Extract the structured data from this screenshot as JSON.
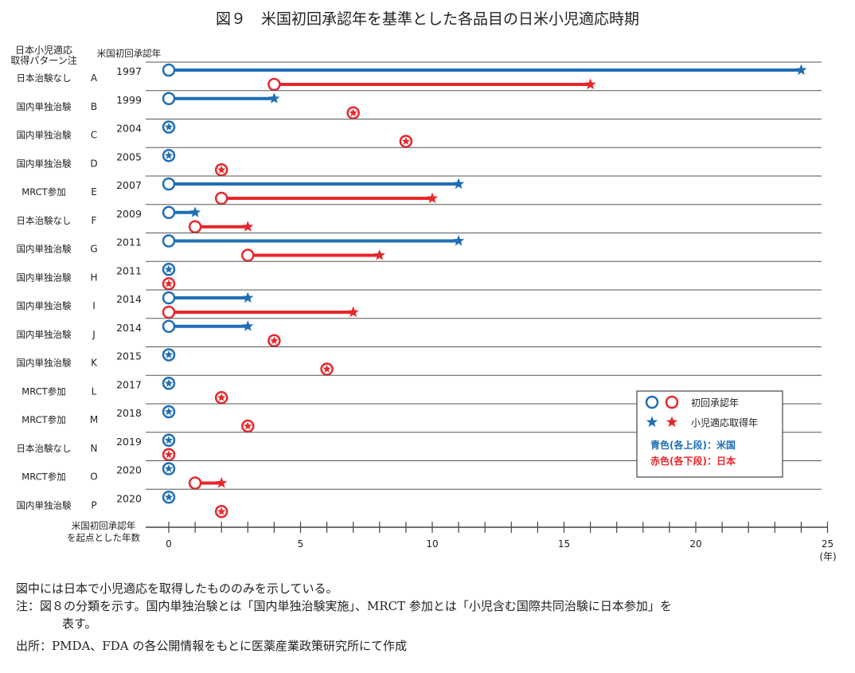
{
  "chart_data": {
    "type": "timeline",
    "title": "図９　米国初回承認年を基準とした各品目の日米小児適応時期",
    "col_header_pattern": [
      "日本小児適応",
      "取得パターン注"
    ],
    "col_header_year": "米国初回承認年",
    "xlabel": [
      "米国初回承認年",
      "を起点とした年数"
    ],
    "x_unit": "(年)",
    "xlim": [
      0,
      25
    ],
    "x_ticks": [
      0,
      5,
      10,
      15,
      20,
      25
    ],
    "legend": {
      "first_approval": "初回承認年",
      "pediatric": "小児適応取得年",
      "blue_note": "青色(各上段)：米国",
      "red_note": "赤色(各下段)：日本"
    },
    "colors": {
      "us": "#1f6eb5",
      "jp": "#e8262b"
    },
    "rows": [
      {
        "pattern": "日本治験なし",
        "id": "A",
        "us_year": "1997",
        "us": [
          0,
          24
        ],
        "jp": [
          4,
          16
        ]
      },
      {
        "pattern": "国内単独治験",
        "id": "B",
        "us_year": "1999",
        "us": [
          0,
          4
        ],
        "jp": [
          7,
          7
        ]
      },
      {
        "pattern": "国内単独治験",
        "id": "C",
        "us_year": "2004",
        "us": [
          0,
          0
        ],
        "jp": [
          9,
          9
        ]
      },
      {
        "pattern": "国内単独治験",
        "id": "D",
        "us_year": "2005",
        "us": [
          0,
          0
        ],
        "jp": [
          2,
          2
        ]
      },
      {
        "pattern": "MRCT参加",
        "id": "E",
        "us_year": "2007",
        "us": [
          0,
          11
        ],
        "jp": [
          2,
          10
        ]
      },
      {
        "pattern": "日本治験なし",
        "id": "F",
        "us_year": "2009",
        "us": [
          0,
          1
        ],
        "jp": [
          1,
          3
        ]
      },
      {
        "pattern": "国内単独治験",
        "id": "G",
        "us_year": "2011",
        "us": [
          0,
          11
        ],
        "jp": [
          3,
          8
        ]
      },
      {
        "pattern": "国内単独治験",
        "id": "H",
        "us_year": "2011",
        "us": [
          0,
          0
        ],
        "jp": [
          0,
          0
        ]
      },
      {
        "pattern": "国内単独治験",
        "id": "I",
        "us_year": "2014",
        "us": [
          0,
          3
        ],
        "jp": [
          0,
          7
        ]
      },
      {
        "pattern": "国内単独治験",
        "id": "J",
        "us_year": "2014",
        "us": [
          0,
          3
        ],
        "jp": [
          4,
          4
        ]
      },
      {
        "pattern": "国内単独治験",
        "id": "K",
        "us_year": "2015",
        "us": [
          0,
          0
        ],
        "jp": [
          6,
          6
        ]
      },
      {
        "pattern": "MRCT参加",
        "id": "L",
        "us_year": "2017",
        "us": [
          0,
          0
        ],
        "jp": [
          2,
          2
        ]
      },
      {
        "pattern": "MRCT参加",
        "id": "M",
        "us_year": "2018",
        "us": [
          0,
          0
        ],
        "jp": [
          3,
          3
        ]
      },
      {
        "pattern": "日本治験なし",
        "id": "N",
        "us_year": "2019",
        "us": [
          0,
          0
        ],
        "jp": [
          0,
          0
        ]
      },
      {
        "pattern": "MRCT参加",
        "id": "O",
        "us_year": "2020",
        "us": [
          0,
          0
        ],
        "jp": [
          1,
          2
        ]
      },
      {
        "pattern": "国内単独治験",
        "id": "P",
        "us_year": "2020",
        "us": [
          0,
          0
        ],
        "jp": [
          2,
          2
        ]
      }
    ]
  },
  "notes": {
    "line1": "図中には日本で小児適応を取得したもののみを示している。",
    "line2": "注：図８の分類を示す。国内単独治験とは「国内単独治験実施」、MRCT 参加とは「小児含む国際共同治験に日本参加」を",
    "line2b": "表す。",
    "source": "出所：PMDA、FDA の各公開情報をもとに医薬産業政策研究所にて作成"
  }
}
